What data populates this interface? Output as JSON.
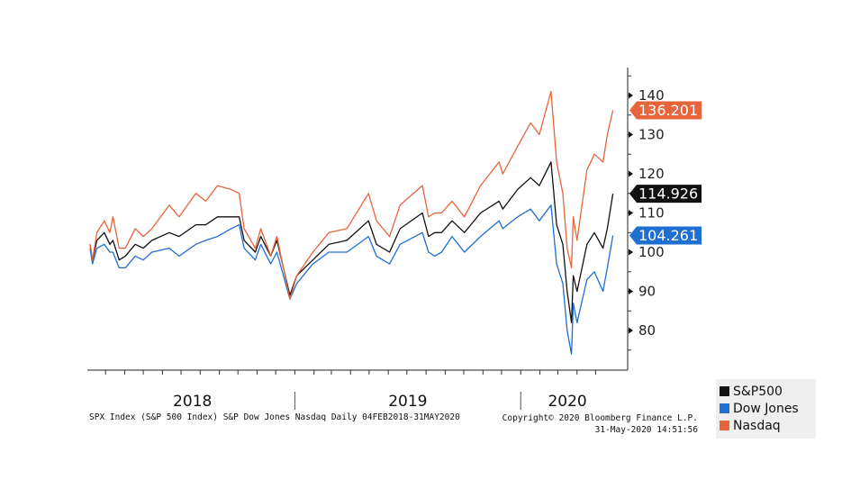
{
  "chart_data": {
    "type": "line",
    "x_start": "2018-02-04",
    "x_end": "2020-05-31",
    "y_ticks": [
      80,
      90,
      100,
      110,
      120,
      130,
      140
    ],
    "ylim": [
      73,
      148
    ],
    "year_labels": [
      "2018",
      "2019",
      "2020"
    ],
    "series": [
      {
        "name": "S&P500",
        "color": "#111111",
        "last_value": "114.926",
        "points": [
          [
            "2018-02-04",
            102
          ],
          [
            "2018-02-08",
            98
          ],
          [
            "2018-02-15",
            103
          ],
          [
            "2018-02-27",
            105
          ],
          [
            "2018-03-08",
            102
          ],
          [
            "2018-03-13",
            103
          ],
          [
            "2018-03-23",
            98
          ],
          [
            "2018-04-02",
            99
          ],
          [
            "2018-04-18",
            102
          ],
          [
            "2018-05-01",
            101
          ],
          [
            "2018-05-15",
            103
          ],
          [
            "2018-06-12",
            105
          ],
          [
            "2018-06-28",
            104
          ],
          [
            "2018-07-25",
            107
          ],
          [
            "2018-08-10",
            107
          ],
          [
            "2018-08-29",
            109
          ],
          [
            "2018-09-20",
            109
          ],
          [
            "2018-10-03",
            109
          ],
          [
            "2018-10-11",
            103
          ],
          [
            "2018-10-29",
            100
          ],
          [
            "2018-11-07",
            104
          ],
          [
            "2018-11-23",
            99
          ],
          [
            "2018-12-03",
            103
          ],
          [
            "2018-12-24",
            89
          ],
          [
            "2019-01-04",
            94
          ],
          [
            "2019-01-30",
            98
          ],
          [
            "2019-02-25",
            102
          ],
          [
            "2019-03-26",
            103
          ],
          [
            "2019-04-30",
            108
          ],
          [
            "2019-05-13",
            102
          ],
          [
            "2019-06-03",
            100
          ],
          [
            "2019-06-20",
            106
          ],
          [
            "2019-07-26",
            110
          ],
          [
            "2019-08-05",
            104
          ],
          [
            "2019-08-15",
            105
          ],
          [
            "2019-08-26",
            105
          ],
          [
            "2019-09-12",
            108
          ],
          [
            "2019-10-02",
            105
          ],
          [
            "2019-10-28",
            110
          ],
          [
            "2019-11-27",
            113
          ],
          [
            "2019-12-03",
            111
          ],
          [
            "2019-12-27",
            116
          ],
          [
            "2020-01-17",
            119
          ],
          [
            "2020-01-31",
            117
          ],
          [
            "2020-02-19",
            123
          ],
          [
            "2020-02-28",
            107
          ],
          [
            "2020-03-09",
            102
          ],
          [
            "2020-03-16",
            90
          ],
          [
            "2020-03-23",
            82
          ],
          [
            "2020-03-26",
            94
          ],
          [
            "2020-04-01",
            90
          ],
          [
            "2020-04-17",
            102
          ],
          [
            "2020-04-29",
            105
          ],
          [
            "2020-05-13",
            101
          ],
          [
            "2020-05-20",
            106
          ],
          [
            "2020-05-29",
            114.926
          ]
        ]
      },
      {
        "name": "Dow Jones",
        "color": "#1e6fd0",
        "last_value": "104.261",
        "points": [
          [
            "2018-02-04",
            101
          ],
          [
            "2018-02-08",
            97
          ],
          [
            "2018-02-15",
            101
          ],
          [
            "2018-02-27",
            102
          ],
          [
            "2018-03-08",
            100
          ],
          [
            "2018-03-13",
            100
          ],
          [
            "2018-03-23",
            96
          ],
          [
            "2018-04-02",
            96
          ],
          [
            "2018-04-18",
            99
          ],
          [
            "2018-05-01",
            98
          ],
          [
            "2018-05-15",
            100
          ],
          [
            "2018-06-12",
            101
          ],
          [
            "2018-06-28",
            99
          ],
          [
            "2018-07-25",
            102
          ],
          [
            "2018-08-10",
            103
          ],
          [
            "2018-08-29",
            104
          ],
          [
            "2018-09-20",
            106
          ],
          [
            "2018-10-03",
            107
          ],
          [
            "2018-10-11",
            101
          ],
          [
            "2018-10-29",
            98
          ],
          [
            "2018-11-07",
            102
          ],
          [
            "2018-11-23",
            97
          ],
          [
            "2018-12-03",
            100
          ],
          [
            "2018-12-24",
            88
          ],
          [
            "2019-01-04",
            92
          ],
          [
            "2019-01-30",
            97
          ],
          [
            "2019-02-25",
            100
          ],
          [
            "2019-03-26",
            100
          ],
          [
            "2019-04-30",
            104
          ],
          [
            "2019-05-13",
            99
          ],
          [
            "2019-06-03",
            97
          ],
          [
            "2019-06-20",
            102
          ],
          [
            "2019-07-26",
            105
          ],
          [
            "2019-08-05",
            100
          ],
          [
            "2019-08-15",
            99
          ],
          [
            "2019-08-26",
            100
          ],
          [
            "2019-09-12",
            104
          ],
          [
            "2019-10-02",
            100
          ],
          [
            "2019-10-28",
            104
          ],
          [
            "2019-11-27",
            108
          ],
          [
            "2019-12-03",
            106
          ],
          [
            "2019-12-27",
            109
          ],
          [
            "2020-01-17",
            111
          ],
          [
            "2020-01-31",
            108
          ],
          [
            "2020-02-19",
            112
          ],
          [
            "2020-02-28",
            97
          ],
          [
            "2020-03-09",
            92
          ],
          [
            "2020-03-16",
            80
          ],
          [
            "2020-03-23",
            74
          ],
          [
            "2020-03-26",
            87
          ],
          [
            "2020-04-01",
            82
          ],
          [
            "2020-04-17",
            93
          ],
          [
            "2020-04-29",
            95
          ],
          [
            "2020-05-13",
            90
          ],
          [
            "2020-05-20",
            96
          ],
          [
            "2020-05-29",
            104.261
          ]
        ]
      },
      {
        "name": "Nasdaq",
        "color": "#e8643a",
        "last_value": "136.201",
        "points": [
          [
            "2018-02-04",
            102
          ],
          [
            "2018-02-08",
            98
          ],
          [
            "2018-02-15",
            105
          ],
          [
            "2018-02-27",
            108
          ],
          [
            "2018-03-08",
            105
          ],
          [
            "2018-03-13",
            109
          ],
          [
            "2018-03-23",
            101
          ],
          [
            "2018-04-02",
            101
          ],
          [
            "2018-04-18",
            106
          ],
          [
            "2018-05-01",
            104
          ],
          [
            "2018-05-15",
            106
          ],
          [
            "2018-06-12",
            112
          ],
          [
            "2018-06-28",
            109
          ],
          [
            "2018-07-25",
            115
          ],
          [
            "2018-08-10",
            113
          ],
          [
            "2018-08-29",
            117
          ],
          [
            "2018-09-20",
            116
          ],
          [
            "2018-10-03",
            115
          ],
          [
            "2018-10-11",
            106
          ],
          [
            "2018-10-29",
            101
          ],
          [
            "2018-11-07",
            106
          ],
          [
            "2018-11-23",
            99
          ],
          [
            "2018-12-03",
            104
          ],
          [
            "2018-12-24",
            88
          ],
          [
            "2019-01-04",
            94
          ],
          [
            "2019-01-30",
            100
          ],
          [
            "2019-02-25",
            105
          ],
          [
            "2019-03-26",
            106
          ],
          [
            "2019-04-30",
            115
          ],
          [
            "2019-05-13",
            108
          ],
          [
            "2019-06-03",
            104
          ],
          [
            "2019-06-20",
            112
          ],
          [
            "2019-07-26",
            117
          ],
          [
            "2019-08-05",
            109
          ],
          [
            "2019-08-15",
            110
          ],
          [
            "2019-08-26",
            110
          ],
          [
            "2019-09-12",
            113
          ],
          [
            "2019-10-02",
            109
          ],
          [
            "2019-10-28",
            117
          ],
          [
            "2019-11-27",
            123
          ],
          [
            "2019-12-03",
            120
          ],
          [
            "2019-12-27",
            127
          ],
          [
            "2020-01-17",
            133
          ],
          [
            "2020-01-31",
            130
          ],
          [
            "2020-02-19",
            141
          ],
          [
            "2020-02-28",
            123
          ],
          [
            "2020-03-09",
            115
          ],
          [
            "2020-03-16",
            101
          ],
          [
            "2020-03-23",
            96
          ],
          [
            "2020-03-26",
            109
          ],
          [
            "2020-04-01",
            103
          ],
          [
            "2020-04-17",
            121
          ],
          [
            "2020-04-29",
            125
          ],
          [
            "2020-05-13",
            123
          ],
          [
            "2020-05-20",
            130
          ],
          [
            "2020-05-29",
            136.201
          ]
        ]
      }
    ]
  },
  "footer": {
    "left": "SPX Index (S&P 500 Index) S&P Dow Jones Nasdaq  Daily 04FEB2018-31MAY2020",
    "right_line1": "Copyright© 2020 Bloomberg Finance L.P.",
    "right_line2": "31-May-2020 14:51:56"
  },
  "legend": {
    "items": [
      {
        "label": "S&P500",
        "color": "#111111"
      },
      {
        "label": "Dow Jones",
        "color": "#1e6fd0"
      },
      {
        "label": "Nasdaq",
        "color": "#e8643a"
      }
    ]
  }
}
